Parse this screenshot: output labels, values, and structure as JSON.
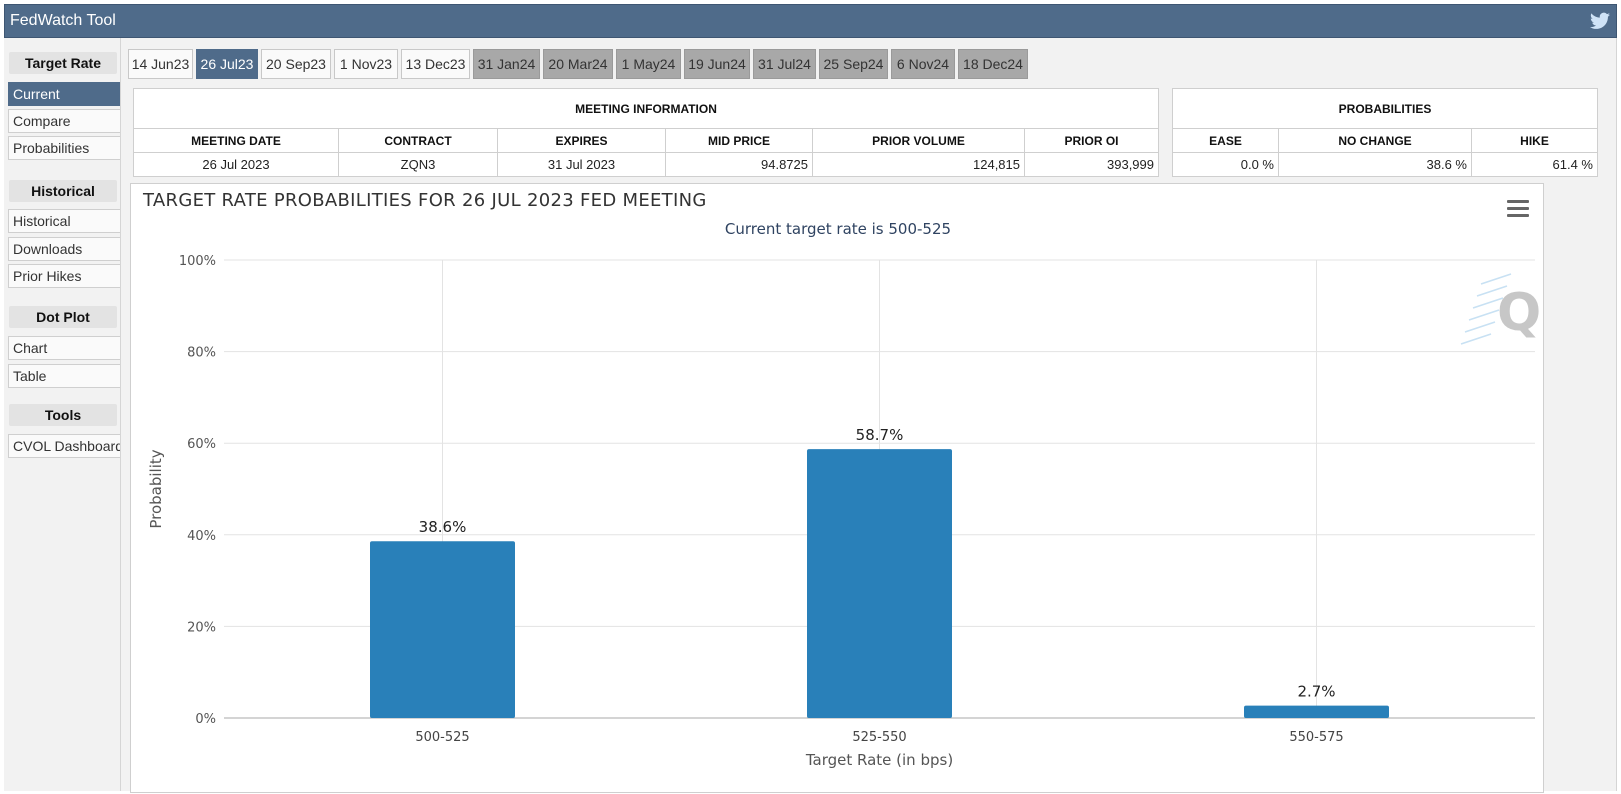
{
  "app": {
    "title": "FedWatch Tool",
    "twitter_icon": "twitter-icon"
  },
  "sidebar": {
    "sections": [
      {
        "heading": "Target Rate",
        "items": [
          "Current",
          "Compare",
          "Probabilities"
        ]
      },
      {
        "heading": "Historical",
        "items": [
          "Historical",
          "Downloads",
          "Prior Hikes"
        ]
      },
      {
        "heading": "Dot Plot",
        "items": [
          "Chart",
          "Table"
        ]
      },
      {
        "heading": "Tools",
        "items": [
          "CVOL Dashboard"
        ]
      }
    ],
    "active_item": "Current"
  },
  "tabs": [
    "14 Jun23",
    "26 Jul23",
    "20 Sep23",
    "1 Nov23",
    "13 Dec23",
    "31 Jan24",
    "20 Mar24",
    "1 May24",
    "19 Jun24",
    "31 Jul24",
    "25 Sep24",
    "6 Nov24",
    "18 Dec24"
  ],
  "active_tab": "26 Jul23",
  "meeting_info": {
    "heading": "MEETING INFORMATION",
    "columns": [
      "MEETING DATE",
      "CONTRACT",
      "EXPIRES",
      "MID PRICE",
      "PRIOR VOLUME",
      "PRIOR OI"
    ],
    "values": [
      "26 Jul 2023",
      "ZQN3",
      "31 Jul 2023",
      "94.8725",
      "124,815",
      "393,999"
    ]
  },
  "probabilities": {
    "heading": "PROBABILITIES",
    "columns": [
      "EASE",
      "NO CHANGE",
      "HIKE"
    ],
    "values": [
      "0.0 %",
      "38.6 %",
      "61.4 %"
    ]
  },
  "chart": {
    "menu_icon": "hamburger-menu-icon",
    "watermark_icon": "q-logo-icon"
  },
  "chart_data": {
    "type": "bar",
    "title": "TARGET RATE PROBABILITIES FOR 26 JUL 2023 FED MEETING",
    "subtitle": "Current target rate is 500-525",
    "xlabel": "Target Rate (in bps)",
    "ylabel": "Probability",
    "categories": [
      "500-525",
      "525-550",
      "550-575"
    ],
    "values": [
      38.6,
      58.7,
      2.7
    ],
    "data_labels": [
      "38.6%",
      "58.7%",
      "2.7%"
    ],
    "ylim": [
      0,
      100
    ],
    "yticks": [
      0,
      20,
      40,
      60,
      80,
      100
    ],
    "ytick_labels": [
      "0%",
      "20%",
      "40%",
      "60%",
      "80%",
      "100%"
    ],
    "grid": true,
    "bar_color": "#2980b9"
  }
}
